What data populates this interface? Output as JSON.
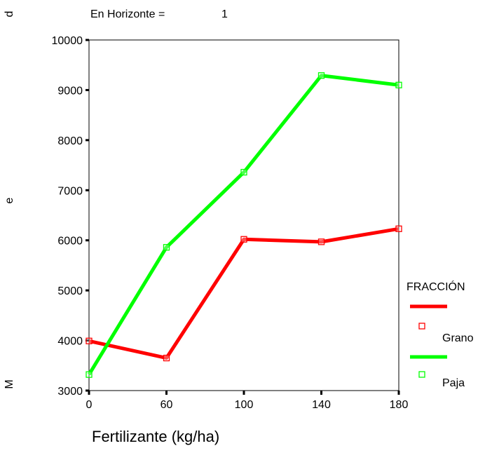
{
  "header": {
    "label": "En Horizonte =",
    "value": "1"
  },
  "chart_data": {
    "type": "line",
    "xlabel": "Fertilizante (kg/ha)",
    "ylabel_chars": [
      "d",
      "e",
      "M"
    ],
    "categories": [
      "0",
      "60",
      "100",
      "140",
      "180"
    ],
    "ylim": [
      3000,
      10000
    ],
    "yticks": [
      3000,
      4000,
      5000,
      6000,
      7000,
      8000,
      9000,
      10000
    ],
    "legend": {
      "title": "FRACCIÓN",
      "placement": "right"
    },
    "series": [
      {
        "name": "Grano",
        "color": "#ff0000",
        "values": [
          3990,
          3650,
          6020,
          5970,
          6230
        ]
      },
      {
        "name": "Paja",
        "color": "#00ff00",
        "values": [
          3320,
          5860,
          7360,
          9290,
          9100
        ]
      }
    ]
  }
}
